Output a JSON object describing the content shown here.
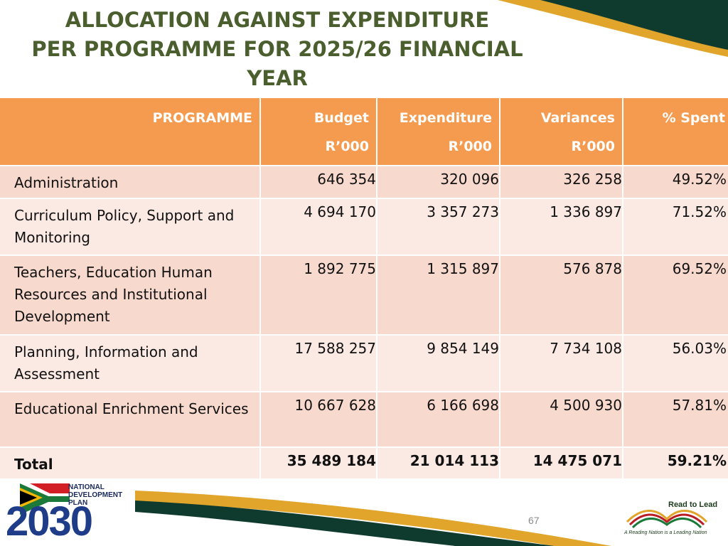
{
  "title": {
    "line1": "ALLOCATION AGAINST EXPENDITURE",
    "line2": "PER PROGRAMME FOR 2025/26 FINANCIAL",
    "line3": "YEAR"
  },
  "table": {
    "headers": {
      "programme": "PROGRAMME",
      "budget": "Budget",
      "budget_unit": "R’000",
      "expenditure": "Expenditure",
      "expenditure_unit": "R’000",
      "variances": "Variances",
      "variances_unit": "R’000",
      "spent": "% Spent"
    },
    "rows": [
      {
        "programme": "Administration",
        "budget": "646 354",
        "expenditure": "320 096",
        "variance": "326 258",
        "spent": "49.52%"
      },
      {
        "programme": "Curriculum Policy, Support and Monitoring",
        "budget": "4 694 170",
        "expenditure": "3 357 273",
        "variance": "1 336 897",
        "spent": "71.52%"
      },
      {
        "programme": "Teachers, Education Human Resources and Institutional Development",
        "budget": "1 892 775",
        "expenditure": "1 315 897",
        "variance": "576 878",
        "spent": "69.52%"
      },
      {
        "programme": "Planning, Information and Assessment",
        "budget": "17 588 257",
        "expenditure": "9 854 149",
        "variance": "7 734 108",
        "spent": "56.03%"
      },
      {
        "programme": "Educational Enrichment Services",
        "budget": "10 667 628",
        "expenditure": "6 166 698",
        "variance": "4 500 930",
        "spent": "57.81%"
      }
    ],
    "total": {
      "programme": "Total",
      "budget": "35 489 184",
      "expenditure": "21 014 113",
      "variance": "14 475 071",
      "spent": "59.21%"
    }
  },
  "footer": {
    "page_number": "67",
    "ndp_line1": "NATIONAL",
    "ndp_line2": "DEVELOPMENT",
    "ndp_line3": "PLAN",
    "ndp_year": "2030",
    "rtl_title": "Read to Lead",
    "rtl_tagline": "A Reading Nation is a Leading Nation"
  },
  "colors": {
    "header_orange": "#f59b4f",
    "row_dark": "#f8d9cd",
    "row_light": "#fbe9e3",
    "title_green": "#4a5e2e",
    "dark_green": "#0f3b2e",
    "gold": "#e0a52a"
  }
}
